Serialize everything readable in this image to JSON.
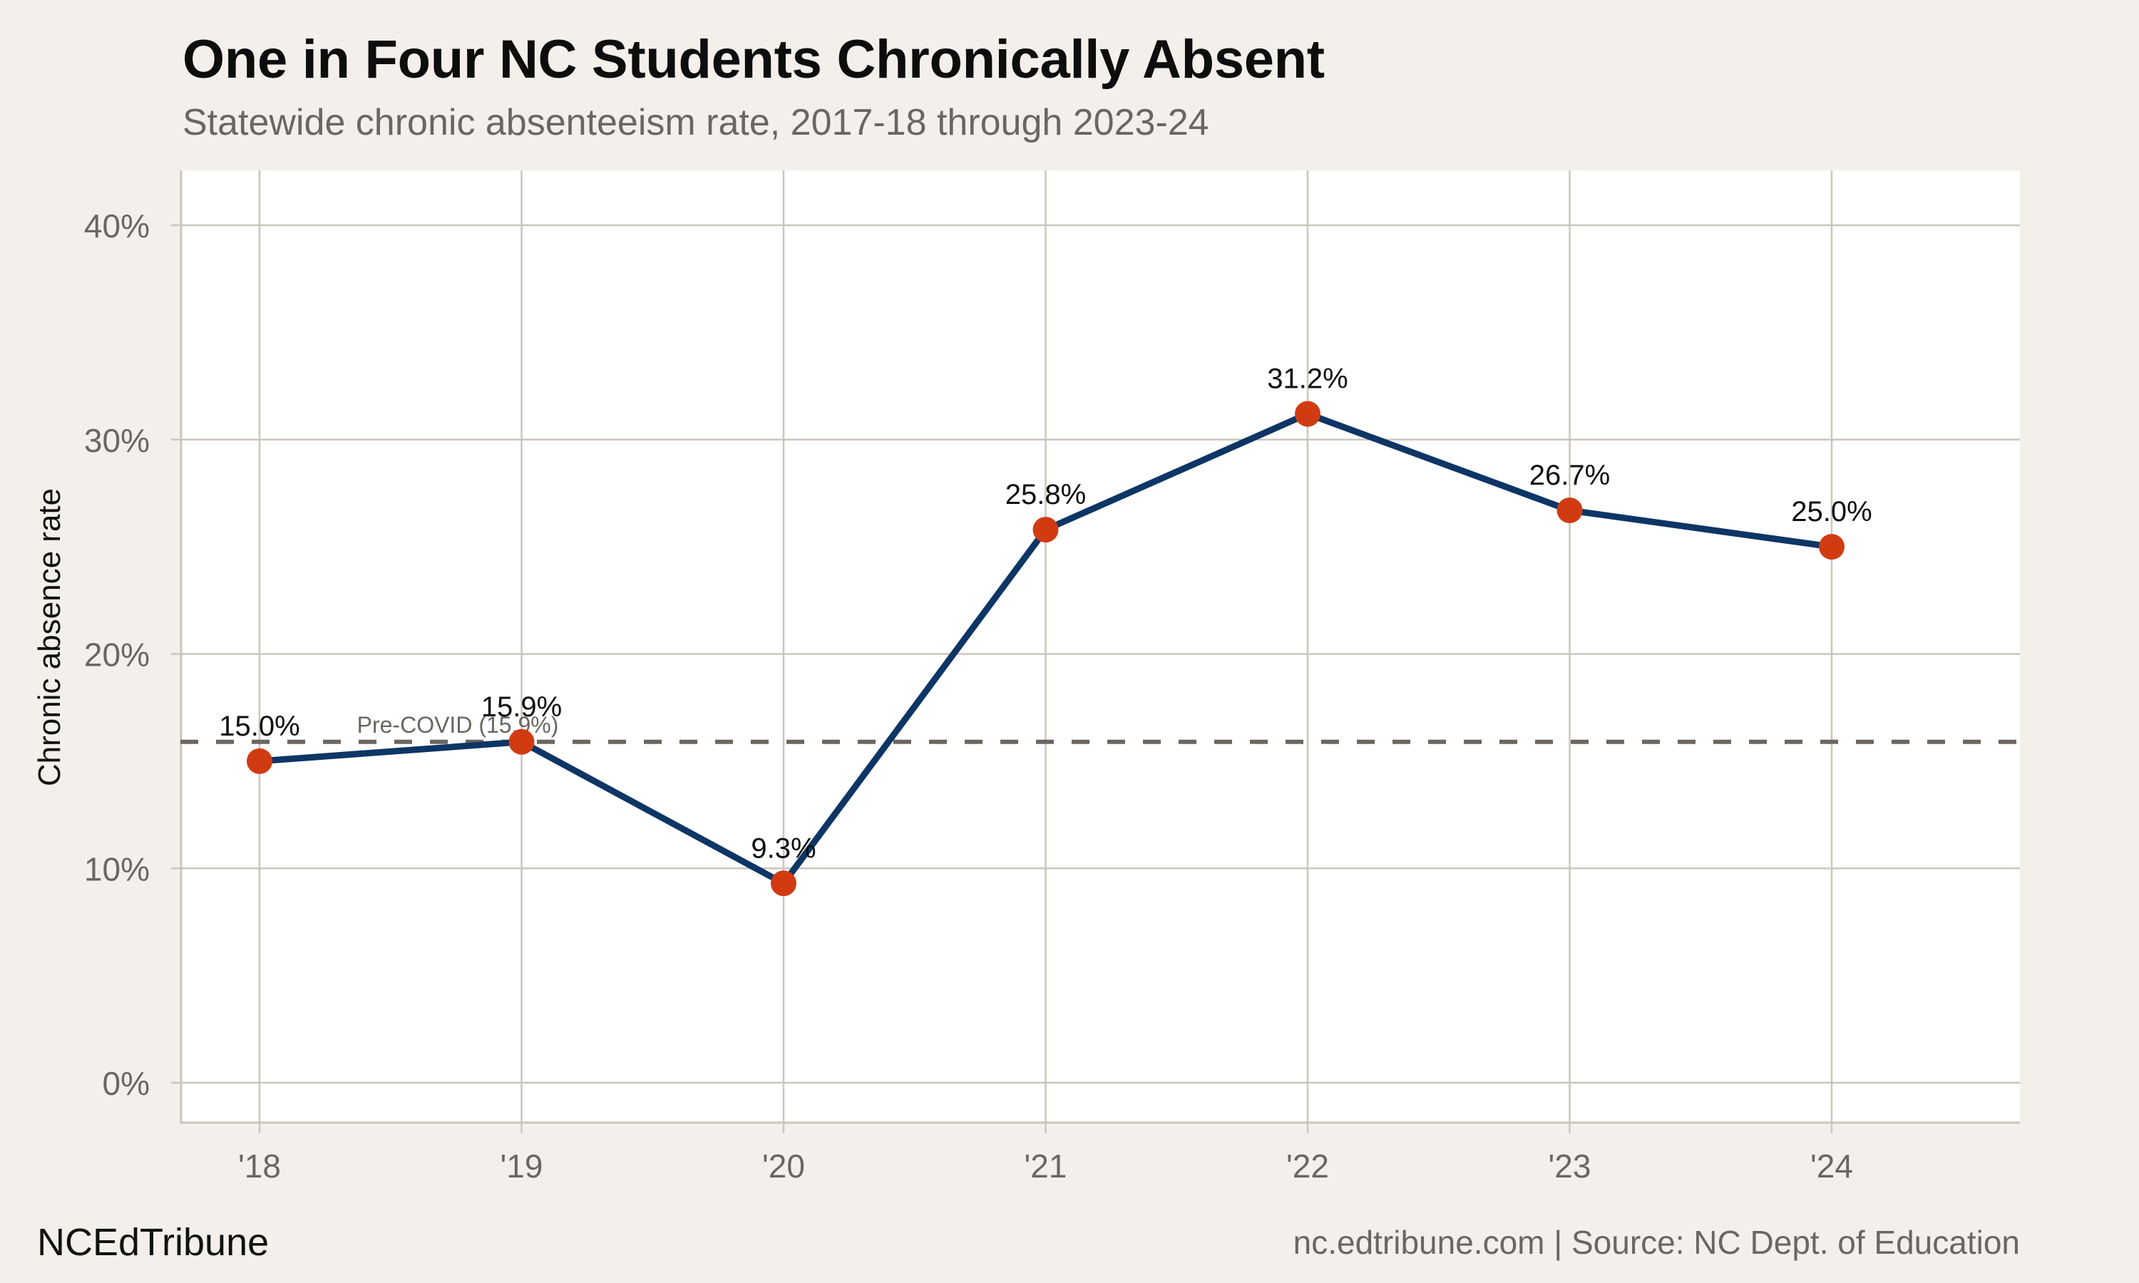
{
  "header": {
    "title": "One in Four NC Students Chronically Absent",
    "subtitle": "Statewide chronic absenteeism rate, 2017-18 through 2023-24"
  },
  "footer": {
    "brand": "NCEdTribune",
    "source": "nc.edtribune.com | Source: NC Dept. of Education"
  },
  "colors": {
    "background": "#f3f0eb",
    "panel": "#ffffff",
    "grid": "#cbc5bc",
    "line": "#0d3565",
    "point": "#d13b12",
    "reference_line": "#6b6660",
    "muted_text": "#6b6660"
  },
  "chart_data": {
    "type": "line",
    "title": "One in Four NC Students Chronically Absent",
    "subtitle": "Statewide chronic absenteeism rate, 2017-18 through 2023-24",
    "xlabel": "",
    "ylabel": "Chronic absence rate",
    "categories": [
      "'18",
      "'19",
      "'20",
      "'21",
      "'22",
      "'23",
      "'24"
    ],
    "series": [
      {
        "name": "Chronic absence rate",
        "values": [
          15.0,
          15.9,
          9.3,
          25.8,
          31.2,
          26.7,
          25.0
        ],
        "labels": [
          "15.0%",
          "15.9%",
          "9.3%",
          "25.8%",
          "31.2%",
          "26.7%",
          "25.0%"
        ]
      }
    ],
    "ylim": [
      0,
      40
    ],
    "yticks": [
      0,
      10,
      20,
      30,
      40
    ],
    "ytick_labels": [
      "0%",
      "10%",
      "20%",
      "30%",
      "40%"
    ],
    "grid": true,
    "legend": "none",
    "annotations": [
      {
        "type": "hline",
        "y": 15.9,
        "style": "dashed",
        "label": "Pre-COVID (15.9%)"
      }
    ]
  }
}
